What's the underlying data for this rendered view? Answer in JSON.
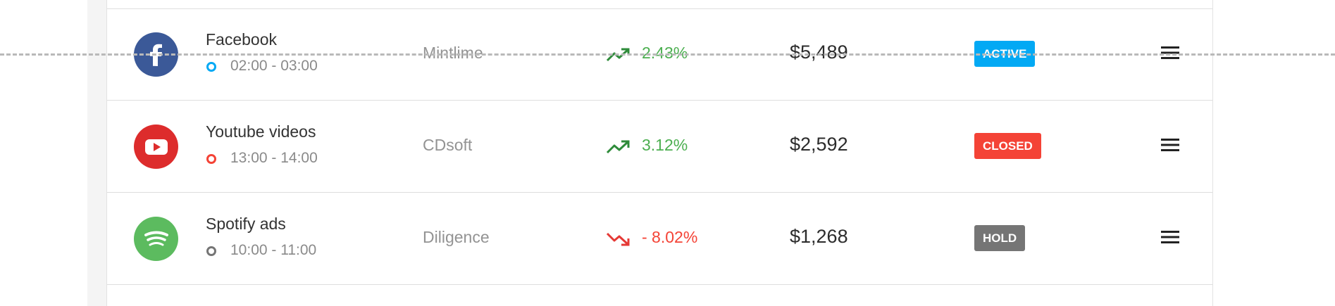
{
  "rows": [
    {
      "title": "Facebook",
      "icon": "facebook-icon",
      "icon_color": "#3b5998",
      "time": "02:00 - 03:00",
      "dot_color": "#03a9f4",
      "company": "Mintlime",
      "trend": "up",
      "change": "2.43%",
      "change_color": "#4caf50",
      "amount": "$5,489",
      "status": "ACTIVE",
      "status_color": "#03a9f4"
    },
    {
      "title": "Youtube videos",
      "icon": "youtube-icon",
      "icon_color": "#dd2c2c",
      "time": "13:00 - 14:00",
      "dot_color": "#f44336",
      "company": "CDsoft",
      "trend": "up",
      "change": "3.12%",
      "change_color": "#4caf50",
      "amount": "$2,592",
      "status": "CLOSED",
      "status_color": "#f44336"
    },
    {
      "title": "Spotify ads",
      "icon": "spotify-icon",
      "icon_color": "#5cbb5f",
      "time": "10:00 - 11:00",
      "dot_color": "#757575",
      "company": "Diligence",
      "trend": "down",
      "change": "- 8.02%",
      "change_color": "#f44336",
      "amount": "$1,268",
      "status": "HOLD",
      "status_color": "#757575"
    }
  ]
}
